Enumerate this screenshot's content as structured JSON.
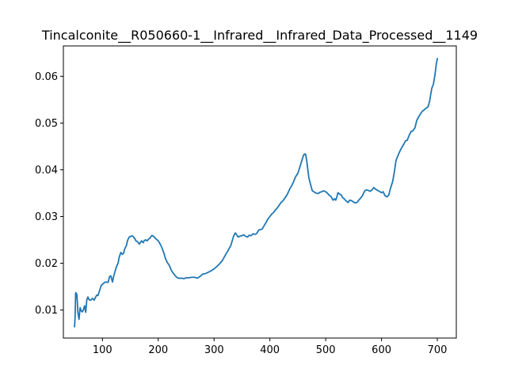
{
  "chart_data": {
    "type": "line",
    "title": "Tincalconite__R050660-1__Infrared__Infrared_Data_Processed__1149",
    "xlabel": "",
    "ylabel": "",
    "xlim": [
      30,
      734
    ],
    "ylim": [
      0.004,
      0.0665
    ],
    "xticks": [
      100,
      200,
      300,
      400,
      500,
      600,
      700
    ],
    "xtick_labels": [
      "100",
      "200",
      "300",
      "400",
      "500",
      "600",
      "700"
    ],
    "yticks": [
      0.01,
      0.02,
      0.03,
      0.04,
      0.05,
      0.06
    ],
    "ytick_labels": [
      "0.01",
      "0.02",
      "0.03",
      "0.04",
      "0.05",
      "0.06"
    ],
    "grid": false,
    "colors": {
      "line": "#1f77b4",
      "axes": "#000000",
      "background": "#ffffff"
    },
    "series": [
      {
        "x": [
          50,
          51,
          52,
          53,
          54,
          55,
          56,
          58,
          60,
          62,
          64,
          66,
          68,
          70,
          72,
          74,
          76,
          78,
          80,
          82,
          85,
          88,
          90,
          92,
          95,
          98,
          100,
          103,
          106,
          110,
          113,
          115,
          118,
          120,
          122,
          125,
          128,
          130,
          133,
          136,
          138,
          140,
          143,
          145,
          148,
          150,
          153,
          155,
          158,
          160,
          163,
          166,
          170,
          173,
          175,
          178,
          180,
          183,
          186,
          188,
          190,
          193,
          196,
          200,
          203,
          206,
          210,
          213,
          216,
          220,
          223,
          226,
          230,
          233,
          236,
          240,
          243,
          246,
          250,
          255,
          260,
          265,
          270,
          275,
          280,
          285,
          290,
          295,
          300,
          305,
          310,
          315,
          320,
          325,
          330,
          333,
          335,
          338,
          340,
          343,
          346,
          350,
          353,
          356,
          360,
          363,
          366,
          370,
          373,
          376,
          380,
          383,
          386,
          390,
          393,
          396,
          400,
          403,
          406,
          410,
          413,
          416,
          420,
          423,
          426,
          430,
          433,
          436,
          440,
          443,
          446,
          450,
          453,
          456,
          460,
          462,
          464,
          466,
          468,
          470,
          473,
          476,
          480,
          483,
          486,
          490,
          493,
          496,
          500,
          503,
          506,
          510,
          513,
          516,
          518,
          520,
          522,
          525,
          528,
          530,
          533,
          536,
          540,
          543,
          546,
          550,
          553,
          556,
          560,
          563,
          566,
          570,
          573,
          576,
          580,
          583,
          586,
          588,
          590,
          593,
          596,
          600,
          603,
          606,
          610,
          613,
          616,
          620,
          623,
          626,
          630,
          633,
          636,
          640,
          643,
          646,
          650,
          653,
          656,
          660,
          663,
          666,
          670,
          673,
          676,
          680,
          683,
          686,
          688,
          690,
          693,
          696,
          698,
          700
        ],
        "y": [
          0.0064,
          0.0085,
          0.0137,
          0.0136,
          0.0134,
          0.0118,
          0.0095,
          0.008,
          0.0105,
          0.0098,
          0.0096,
          0.0101,
          0.0109,
          0.0095,
          0.0122,
          0.0128,
          0.0122,
          0.0121,
          0.0122,
          0.0125,
          0.0121,
          0.0128,
          0.0132,
          0.0131,
          0.0142,
          0.0153,
          0.0155,
          0.0158,
          0.016,
          0.0159,
          0.0172,
          0.0173,
          0.016,
          0.0172,
          0.018,
          0.0192,
          0.02,
          0.0213,
          0.0223,
          0.0219,
          0.0222,
          0.0231,
          0.0238,
          0.0249,
          0.0256,
          0.0257,
          0.0259,
          0.0257,
          0.0253,
          0.0248,
          0.0246,
          0.0241,
          0.0248,
          0.0244,
          0.0249,
          0.025,
          0.0248,
          0.0252,
          0.0255,
          0.0259,
          0.0259,
          0.0256,
          0.0252,
          0.0248,
          0.0242,
          0.0235,
          0.0222,
          0.021,
          0.0202,
          0.0195,
          0.0186,
          0.018,
          0.0174,
          0.017,
          0.0168,
          0.0168,
          0.0168,
          0.0167,
          0.0169,
          0.0169,
          0.017,
          0.017,
          0.0168,
          0.0172,
          0.0177,
          0.0178,
          0.0181,
          0.0184,
          0.0188,
          0.0193,
          0.0199,
          0.0206,
          0.0217,
          0.0227,
          0.0238,
          0.025,
          0.0258,
          0.0265,
          0.0262,
          0.0256,
          0.0258,
          0.0259,
          0.0261,
          0.0258,
          0.0256,
          0.026,
          0.0259,
          0.0263,
          0.0262,
          0.0263,
          0.0271,
          0.0272,
          0.0273,
          0.0281,
          0.0287,
          0.0294,
          0.03,
          0.0305,
          0.0308,
          0.0314,
          0.0318,
          0.0323,
          0.033,
          0.0333,
          0.0338,
          0.0345,
          0.0352,
          0.036,
          0.0368,
          0.0376,
          0.0385,
          0.0392,
          0.0403,
          0.0415,
          0.043,
          0.0434,
          0.0433,
          0.042,
          0.04,
          0.0382,
          0.0368,
          0.0355,
          0.0352,
          0.035,
          0.0349,
          0.0352,
          0.0353,
          0.0355,
          0.0353,
          0.035,
          0.0346,
          0.0342,
          0.0335,
          0.0338,
          0.0335,
          0.0342,
          0.0351,
          0.0348,
          0.0346,
          0.0341,
          0.0338,
          0.0334,
          0.033,
          0.0335,
          0.0334,
          0.0331,
          0.0329,
          0.033,
          0.0336,
          0.034,
          0.0345,
          0.0355,
          0.0357,
          0.0356,
          0.0354,
          0.0357,
          0.0362,
          0.036,
          0.0358,
          0.0356,
          0.0354,
          0.0351,
          0.0353,
          0.0345,
          0.0342,
          0.0346,
          0.036,
          0.0375,
          0.0395,
          0.042,
          0.0432,
          0.044,
          0.0447,
          0.0455,
          0.0462,
          0.0463,
          0.0475,
          0.0482,
          0.0483,
          0.049,
          0.0505,
          0.0512,
          0.052,
          0.0525,
          0.0528,
          0.0532,
          0.0534,
          0.0545,
          0.056,
          0.0574,
          0.0583,
          0.0605,
          0.0625,
          0.0638
        ]
      }
    ]
  }
}
